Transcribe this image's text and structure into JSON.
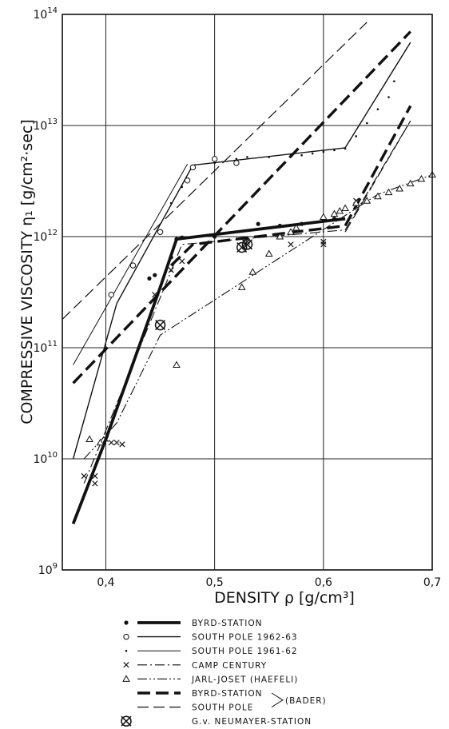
{
  "chart_data": {
    "type": "line",
    "xlabel": "DENSITY ρ [g/cm³]",
    "ylabel": "COMPRESSIVE VISCOSITY η₁ [g/cm²·sec]",
    "xlim": [
      0.36,
      0.7
    ],
    "ylim_log10": [
      9,
      14
    ],
    "yscale": "log",
    "grid": true,
    "x_ticks": [
      {
        "value": 0.4,
        "label": "0,4"
      },
      {
        "value": 0.5,
        "label": "0,5"
      },
      {
        "value": 0.6,
        "label": "0,6"
      },
      {
        "value": 0.7,
        "label": "0,7"
      }
    ],
    "y_ticks": [
      {
        "exp": 9,
        "base": "10",
        "sup": "9"
      },
      {
        "exp": 10,
        "base": "10",
        "sup": "10"
      },
      {
        "exp": 11,
        "base": "10",
        "sup": "11"
      },
      {
        "exp": 12,
        "base": "10",
        "sup": "12"
      },
      {
        "exp": 13,
        "base": "10",
        "sup": "13"
      },
      {
        "exp": 14,
        "base": "10",
        "sup": "14"
      }
    ],
    "series": [
      {
        "name": "BYRD-STATION",
        "marker": "dot",
        "style": "thick",
        "line": [
          [
            0.37,
            2600000000.0
          ],
          [
            0.4,
            15000000000.0
          ],
          [
            0.45,
            350000000000.0
          ],
          [
            0.465,
            950000000000.0
          ],
          [
            0.62,
            1450000000000.0
          ]
        ],
        "points": [
          [
            0.44,
            420000000000.0
          ],
          [
            0.445,
            450000000000.0
          ],
          [
            0.46,
            650000000000.0
          ],
          [
            0.465,
            950000000000.0
          ],
          [
            0.47,
            980000000000.0
          ],
          [
            0.5,
            1000000000000.0
          ],
          [
            0.54,
            1300000000000.0
          ],
          [
            0.56,
            1250000000000.0
          ],
          [
            0.58,
            1300000000000.0
          ],
          [
            0.6,
            1400000000000.0
          ],
          [
            0.61,
            1450000000000.0
          ]
        ]
      },
      {
        "name": "SOUTH POLE 1962-63",
        "marker": "circle",
        "style": "solid",
        "line": [
          [
            0.37,
            10000000000.0
          ],
          [
            0.41,
            250000000000.0
          ],
          [
            0.48,
            4400000000000.0
          ],
          [
            0.62,
            6300000000000.0
          ],
          [
            0.68,
            56000000000000.0
          ]
        ],
        "points": [
          [
            0.405,
            300000000000.0
          ],
          [
            0.425,
            550000000000.0
          ],
          [
            0.45,
            1100000000000.0
          ],
          [
            0.475,
            3200000000000.0
          ],
          [
            0.48,
            4200000000000.0
          ],
          [
            0.5,
            5000000000000.0
          ],
          [
            0.52,
            4600000000000.0
          ]
        ]
      },
      {
        "name": "SOUTH POLE 1961-62",
        "marker": "small-dot",
        "style": "thin",
        "line": [
          [
            0.37,
            70000000000.0
          ],
          [
            0.475,
            4500000000000.0
          ]
        ],
        "points": [
          [
            0.46,
            2000000000000.0
          ],
          [
            0.47,
            2800000000000.0
          ],
          [
            0.5,
            4600000000000.0
          ],
          [
            0.52,
            5000000000000.0
          ],
          [
            0.53,
            5200000000000.0
          ],
          [
            0.55,
            5200000000000.0
          ],
          [
            0.57,
            5500000000000.0
          ],
          [
            0.58,
            5400000000000.0
          ],
          [
            0.59,
            5600000000000.0
          ],
          [
            0.6,
            5800000000000.0
          ],
          [
            0.61,
            6000000000000.0
          ],
          [
            0.62,
            6200000000000.0
          ],
          [
            0.63,
            8000000000000.0
          ],
          [
            0.64,
            10500000000000.0
          ],
          [
            0.65,
            14000000000000.0
          ],
          [
            0.66,
            18000000000000.0
          ],
          [
            0.665,
            25000000000000.0
          ]
        ]
      },
      {
        "name": "CAMP CENTURY",
        "marker": "cross",
        "style": "dashdot",
        "line": [
          [
            0.38,
            6000000000.0
          ],
          [
            0.4,
            18000000000.0
          ],
          [
            0.47,
            850000000000.0
          ],
          [
            0.62,
            1150000000000.0
          ],
          [
            0.68,
            11000000000000.0
          ]
        ],
        "points": [
          [
            0.38,
            7000000000.0
          ],
          [
            0.39,
            6000000000.0
          ],
          [
            0.39,
            7000000000.0
          ],
          [
            0.4,
            15000000000.0
          ],
          [
            0.405,
            14000000000.0
          ],
          [
            0.41,
            14000000000.0
          ],
          [
            0.415,
            13500000000.0
          ],
          [
            0.445,
            300000000000.0
          ],
          [
            0.46,
            500000000000.0
          ],
          [
            0.47,
            600000000000.0
          ],
          [
            0.53,
            900000000000.0
          ],
          [
            0.57,
            850000000000.0
          ],
          [
            0.6,
            900000000000.0
          ],
          [
            0.6,
            850000000000.0
          ],
          [
            0.63,
            2100000000000.0
          ]
        ]
      },
      {
        "name": "JARL-JOSET (HAEFELI)",
        "marker": "triangle",
        "style": "dashdotdot",
        "line": [
          [
            0.38,
            10000000000.0
          ],
          [
            0.41,
            21000000000.0
          ],
          [
            0.45,
            130000000000.0
          ],
          [
            0.65,
            2400000000000.0
          ],
          [
            0.7,
            3600000000000.0
          ]
        ],
        "points": [
          [
            0.385,
            15000000000.0
          ],
          [
            0.395,
            14000000000.0
          ],
          [
            0.465,
            70000000000.0
          ],
          [
            0.525,
            350000000000.0
          ],
          [
            0.535,
            480000000000.0
          ],
          [
            0.55,
            700000000000.0
          ],
          [
            0.56,
            1000000000000.0
          ],
          [
            0.57,
            1100000000000.0
          ],
          [
            0.575,
            1200000000000.0
          ],
          [
            0.6,
            1500000000000.0
          ],
          [
            0.61,
            1600000000000.0
          ],
          [
            0.615,
            1700000000000.0
          ],
          [
            0.62,
            1800000000000.0
          ],
          [
            0.63,
            2000000000000.0
          ],
          [
            0.64,
            2100000000000.0
          ],
          [
            0.65,
            2300000000000.0
          ],
          [
            0.66,
            2500000000000.0
          ],
          [
            0.67,
            2700000000000.0
          ],
          [
            0.68,
            3000000000000.0
          ],
          [
            0.69,
            3300000000000.0
          ],
          [
            0.7,
            3600000000000.0
          ]
        ]
      },
      {
        "name": "BYRD-STATION",
        "marker": "none",
        "style": "thickdash",
        "line": [
          [
            0.37,
            48000000000.0
          ],
          [
            0.68,
            70000000000000.0
          ]
        ],
        "line2": [
          [
            0.46,
            550000000000.0
          ],
          [
            0.48,
            850000000000.0
          ],
          [
            0.62,
            1250000000000.0
          ],
          [
            0.68,
            15000000000000.0
          ]
        ],
        "points": []
      },
      {
        "name": "SOUTH POLE",
        "marker": "none",
        "style": "dash",
        "line": [
          [
            0.36,
            180000000000.0
          ],
          [
            0.64,
            85000000000000.0
          ]
        ],
        "line2": [
          [
            0.62,
            1100000000000.0
          ],
          [
            0.68,
            11000000000000.0
          ]
        ],
        "points": []
      },
      {
        "name": "G.v. NEUMAYER-STATION",
        "marker": "circled-cross",
        "style": "none",
        "line": [],
        "points": [
          [
            0.45,
            160000000000.0
          ],
          [
            0.525,
            800000000000.0
          ],
          [
            0.53,
            850000000000.0
          ]
        ]
      }
    ],
    "legend_group_label": "(BADER)"
  }
}
